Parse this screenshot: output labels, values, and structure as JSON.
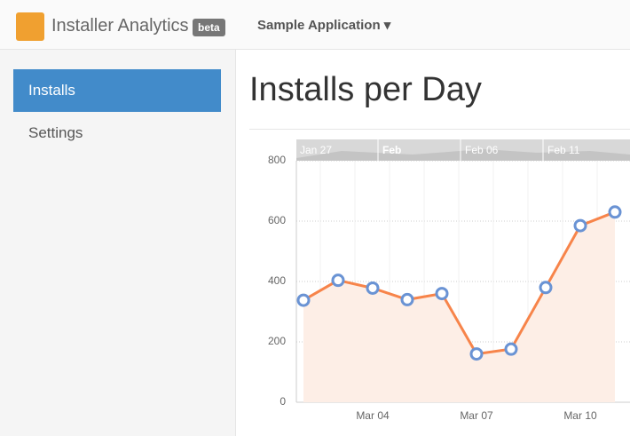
{
  "header": {
    "app_title": "Installer Analytics",
    "badge": "beta",
    "app_selector": "Sample Application"
  },
  "sidebar": {
    "items": [
      "Installs",
      "Settings"
    ]
  },
  "page_title": "Installs per Day",
  "chart_data": {
    "type": "line",
    "navigator_labels": [
      "Jan 27",
      "Feb",
      "Feb 06",
      "Feb 11"
    ],
    "categories": [
      null,
      null,
      "Mar 04",
      null,
      null,
      "Mar 07",
      null,
      null,
      "Mar 10",
      null
    ],
    "series": [
      {
        "name": "Installs",
        "color": "#f7844a",
        "values": [
          338,
          404,
          378,
          340,
          360,
          160,
          176,
          380,
          585,
          630
        ]
      }
    ],
    "ylim": [
      0,
      800
    ],
    "yticks": [
      0,
      200,
      400,
      600,
      800
    ],
    "grid": true
  }
}
